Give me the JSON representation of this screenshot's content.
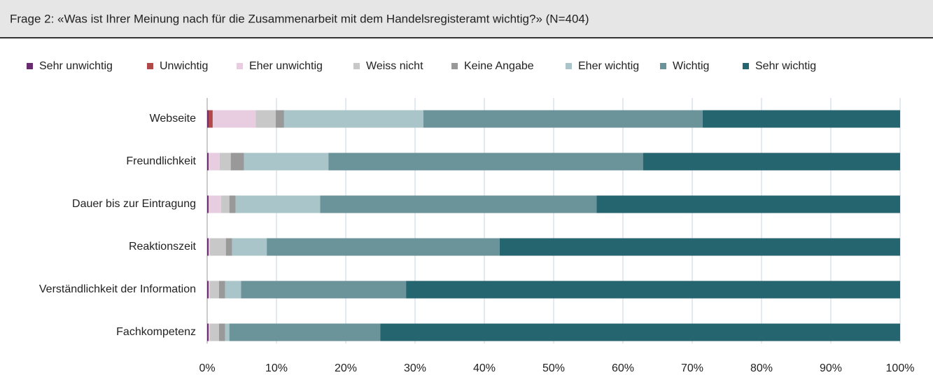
{
  "chart_data": {
    "type": "stacked_barh",
    "title": "Frage 2: «Was ist Ihrer Meinung nach für die Zusammenarbeit mit dem Handelsregisteramt wichtig?» (N=404)",
    "categories": [
      "Webseite",
      "Freundlichkeit",
      "Dauer bis zur Eintragung",
      "Reaktionszeit",
      "Verständlichkeit der Information",
      "Fachkompetenz"
    ],
    "series": [
      {
        "name": "Sehr unwichtig",
        "color": "#6a2c70",
        "values": [
          0.2,
          0.2,
          0.2,
          0.2,
          0.2,
          0.2
        ]
      },
      {
        "name": "Unwichtig",
        "color": "#b04a4a",
        "values": [
          0.6,
          0,
          0,
          0,
          0,
          0
        ]
      },
      {
        "name": "Eher unwichtig",
        "color": "#e8cde0",
        "values": [
          6.2,
          1.6,
          1.8,
          0.2,
          0.2,
          0.2
        ]
      },
      {
        "name": "Weiss nicht",
        "color": "#c8c8c8",
        "values": [
          2.9,
          1.6,
          1.2,
          2.3,
          1.3,
          1.3
        ]
      },
      {
        "name": "Keine Angabe",
        "color": "#999999",
        "values": [
          1.2,
          1.9,
          0.9,
          0.9,
          0.9,
          0.9
        ]
      },
      {
        "name": "Eher wichtig",
        "color": "#a9c5ca",
        "values": [
          20.1,
          12.2,
          12.2,
          5.0,
          2.3,
          0.6
        ]
      },
      {
        "name": "Wichtig",
        "color": "#6b939a",
        "values": [
          40.3,
          45.4,
          39.9,
          33.6,
          23.8,
          21.8
        ]
      },
      {
        "name": "Sehr wichtig",
        "color": "#256570",
        "values": [
          28.5,
          37.1,
          43.8,
          57.8,
          71.3,
          75.0
        ]
      }
    ],
    "xlim": [
      0,
      100
    ],
    "xticks": [
      {
        "value": 0,
        "label": "0%"
      },
      {
        "value": 10,
        "label": "10%"
      },
      {
        "value": 20,
        "label": "20%"
      },
      {
        "value": 30,
        "label": "30%"
      },
      {
        "value": 40,
        "label": "40%"
      },
      {
        "value": 50,
        "label": "50%"
      },
      {
        "value": 60,
        "label": "60%"
      },
      {
        "value": 70,
        "label": "70%"
      },
      {
        "value": 80,
        "label": "80%"
      },
      {
        "value": 90,
        "label": "90%"
      },
      {
        "value": 100,
        "label": "100%"
      }
    ],
    "grid": true,
    "legend": "top"
  }
}
